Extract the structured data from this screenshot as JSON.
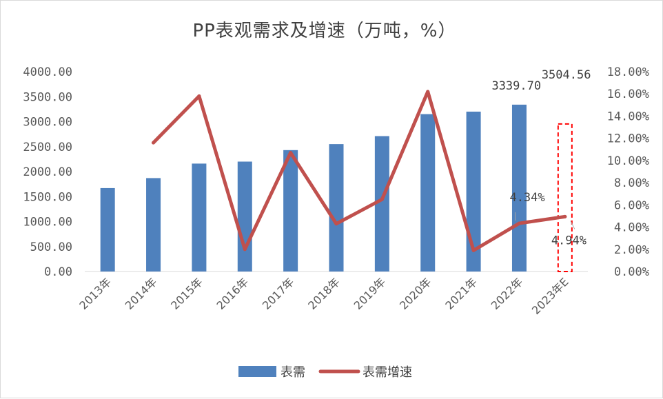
{
  "chart_data": {
    "type": "bar",
    "title": "PP表观需求及增速（万吨，%）",
    "categories": [
      "2013年",
      "2014年",
      "2015年",
      "2016年",
      "2017年",
      "2018年",
      "2019年",
      "2020年",
      "2021年",
      "2022年",
      "2023年E"
    ],
    "series": [
      {
        "name": "表需",
        "type": "bar",
        "axis": "left",
        "color": "#4f81bd",
        "values": [
          1670,
          1870,
          2160,
          2200,
          2430,
          2550,
          2710,
          3150,
          3200,
          3339.7,
          3504.56
        ]
      },
      {
        "name": "表需增速",
        "type": "line",
        "axis": "right",
        "color": "#c0504d",
        "values": [
          null,
          11.6,
          15.8,
          2.0,
          10.7,
          4.3,
          6.5,
          16.2,
          1.9,
          4.34,
          4.94
        ]
      }
    ],
    "left_axis": {
      "ylim": [
        0,
        4000
      ],
      "ticks": [
        0,
        500,
        1000,
        1500,
        2000,
        2500,
        3000,
        3500,
        4000
      ],
      "tick_labels": [
        "0.00",
        "500.00",
        "1000.00",
        "1500.00",
        "2000.00",
        "2500.00",
        "3000.00",
        "3500.00",
        "4000.00"
      ]
    },
    "right_axis": {
      "ylim": [
        0,
        18
      ],
      "ticks": [
        0,
        2,
        4,
        6,
        8,
        10,
        12,
        14,
        16,
        18
      ],
      "tick_labels": [
        "0.00%",
        "2.00%",
        "4.00%",
        "6.00%",
        "8.00%",
        "10.00%",
        "12.00%",
        "14.00%",
        "16.00%",
        "18.00%"
      ]
    },
    "data_labels": [
      {
        "series": 0,
        "index": 9,
        "text": "3339.70"
      },
      {
        "series": 0,
        "index": 10,
        "text": "3504.56"
      },
      {
        "series": 1,
        "index": 9,
        "text": "4.34%"
      },
      {
        "series": 1,
        "index": 10,
        "text": "4.94%"
      }
    ],
    "highlight_box": {
      "category_index": 10,
      "style": "dashed",
      "color": "#ff0000"
    },
    "grid": false,
    "legend_position": "bottom"
  }
}
